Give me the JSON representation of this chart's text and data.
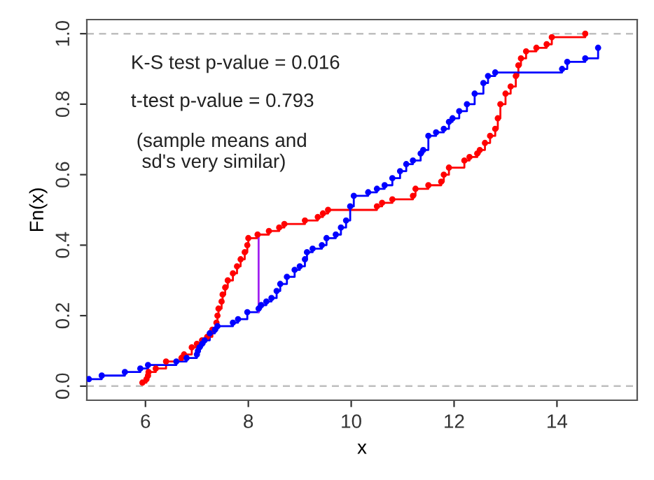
{
  "chart_data": {
    "type": "step",
    "xlabel": "x",
    "ylabel": "Fn(x)",
    "xlim": [
      4.86,
      15.56
    ],
    "ylim": [
      -0.04,
      1.04
    ],
    "xticks": [
      6,
      8,
      10,
      12,
      14
    ],
    "yticks": [
      {
        "value": 0,
        "label": "0.0"
      },
      {
        "value": 0.2,
        "label": "0.2"
      },
      {
        "value": 0.4,
        "label": "0.4"
      },
      {
        "value": 0.6,
        "label": "0.6"
      },
      {
        "value": 0.8,
        "label": "0.8"
      },
      {
        "value": 1,
        "label": "1.0"
      }
    ],
    "grid": false,
    "legend": false,
    "marker": "circle",
    "line_style": "solid",
    "ref_lines": [
      {
        "axis": "y",
        "value": 0,
        "color": "#bebebe",
        "line_style": "dashed"
      },
      {
        "axis": "y",
        "value": 1,
        "color": "#bebebe",
        "line_style": "dashed"
      }
    ],
    "annotations": [
      "K-S test p-value = 0.016",
      "t-test p-value = 0.793",
      "(sample means and\n sd's very similar)"
    ],
    "series": [
      {
        "color": "#ff0000",
        "x": [
          5.94,
          6.02,
          6.05,
          6.06,
          6.2,
          6.4,
          6.7,
          6.75,
          6.9,
          7.0,
          7.1,
          7.2,
          7.3,
          7.38,
          7.4,
          7.42,
          7.48,
          7.5,
          7.55,
          7.6,
          7.7,
          7.78,
          7.85,
          7.93,
          7.98,
          8.0,
          8.18,
          8.4,
          8.6,
          8.7,
          9.1,
          9.35,
          9.45,
          9.55,
          10.5,
          10.6,
          10.8,
          11.2,
          11.25,
          11.5,
          11.75,
          11.8,
          11.9,
          12.2,
          12.3,
          12.45,
          12.5,
          12.6,
          12.7,
          12.8,
          12.85,
          12.9,
          13.0,
          13.1,
          13.2,
          13.25,
          13.3,
          13.4,
          13.6,
          13.8,
          13.9,
          14.55
        ],
        "values": [
          0.01,
          0.02,
          0.03,
          0.04,
          0.05,
          0.07,
          0.08,
          0.09,
          0.11,
          0.12,
          0.13,
          0.14,
          0.16,
          0.18,
          0.2,
          0.22,
          0.24,
          0.26,
          0.28,
          0.3,
          0.32,
          0.34,
          0.36,
          0.38,
          0.4,
          0.42,
          0.43,
          0.44,
          0.45,
          0.46,
          0.47,
          0.48,
          0.49,
          0.5,
          0.51,
          0.52,
          0.53,
          0.54,
          0.56,
          0.57,
          0.58,
          0.6,
          0.62,
          0.64,
          0.65,
          0.66,
          0.67,
          0.69,
          0.71,
          0.73,
          0.76,
          0.8,
          0.83,
          0.85,
          0.88,
          0.91,
          0.93,
          0.95,
          0.96,
          0.97,
          0.99,
          1.0
        ]
      },
      {
        "color": "#0000ff",
        "x": [
          4.9,
          5.15,
          5.6,
          5.9,
          6.05,
          6.6,
          6.8,
          7.0,
          7.02,
          7.05,
          7.1,
          7.15,
          7.25,
          7.35,
          7.4,
          7.7,
          7.8,
          7.98,
          8.2,
          8.25,
          8.35,
          8.45,
          8.55,
          8.62,
          8.75,
          8.9,
          9.0,
          9.1,
          9.14,
          9.25,
          9.43,
          9.52,
          9.7,
          9.8,
          9.9,
          9.98,
          10.05,
          10.33,
          10.5,
          10.65,
          10.8,
          10.95,
          11.07,
          11.2,
          11.35,
          11.4,
          11.5,
          11.65,
          11.8,
          11.9,
          11.97,
          12.1,
          12.25,
          12.4,
          12.57,
          12.66,
          12.8,
          14.1,
          14.2,
          14.55,
          14.8
        ],
        "values": [
          0.02,
          0.03,
          0.04,
          0.05,
          0.06,
          0.07,
          0.08,
          0.09,
          0.1,
          0.11,
          0.12,
          0.13,
          0.15,
          0.16,
          0.17,
          0.18,
          0.19,
          0.21,
          0.22,
          0.23,
          0.24,
          0.25,
          0.27,
          0.29,
          0.31,
          0.33,
          0.34,
          0.36,
          0.38,
          0.39,
          0.4,
          0.42,
          0.43,
          0.45,
          0.47,
          0.51,
          0.54,
          0.55,
          0.56,
          0.57,
          0.59,
          0.61,
          0.63,
          0.64,
          0.66,
          0.67,
          0.71,
          0.72,
          0.73,
          0.75,
          0.76,
          0.78,
          0.8,
          0.83,
          0.86,
          0.88,
          0.89,
          0.9,
          0.92,
          0.93,
          0.96
        ]
      },
      {
        "type": "line",
        "color": "#a020f0",
        "marker": "none",
        "x": [
          8.2,
          8.2
        ],
        "values": [
          0.21,
          0.43
        ]
      }
    ]
  }
}
